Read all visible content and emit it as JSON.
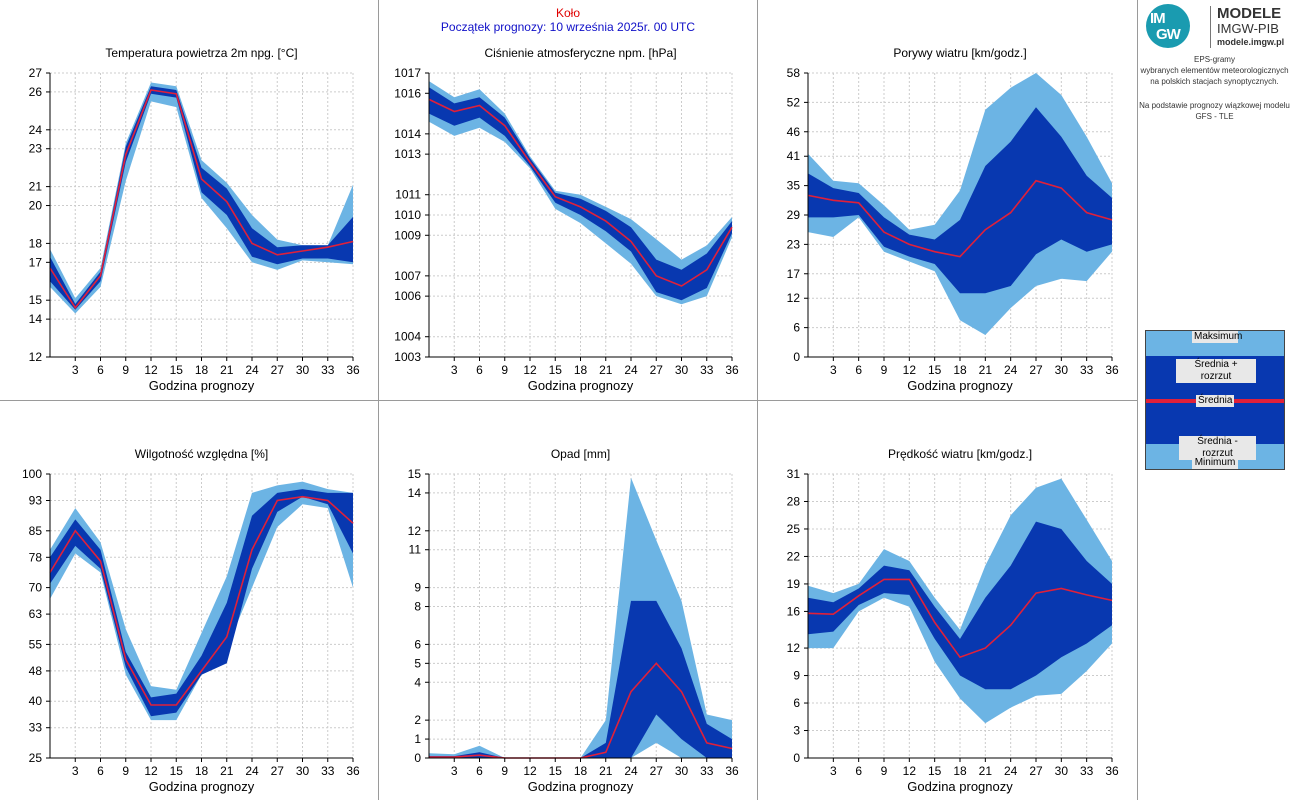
{
  "header": {
    "station": "Koło",
    "forecast_start": "Początek prognozy: 10 września 2025r. 00 UTC"
  },
  "sidebar": {
    "logo_big": "MODELE",
    "logo_org": "IMGW-PIB",
    "logo_url": "modele.imgw.pl",
    "logo_mark_top": "IM",
    "logo_mark_bottom": "GW",
    "desc_lines": [
      "EPS-gramy",
      "wybranych elementów meteorologicznych",
      "na polskich stacjach  synoptycznych."
    ],
    "source_lines": [
      "Na podstawie prognozy wiązkowej modelu",
      "GFS - TLE"
    ],
    "legend": {
      "max": "Maksimum",
      "mean_plus": "Średnia + rozrzut",
      "mean": "Średnia",
      "mean_minus": "Średnia - rozrzut",
      "min": "Minimum"
    }
  },
  "colors": {
    "envelope": "#6cb4e4",
    "spread": "#0838b0",
    "mean": "#e0203a",
    "grid": "#cccccc"
  },
  "chart_data": [
    {
      "type": "area",
      "title": "Temperatura powietrza 2m npg. [°C]",
      "xlabel": "Godzina prognozy",
      "x": [
        0,
        3,
        6,
        9,
        12,
        15,
        18,
        21,
        24,
        27,
        30,
        33,
        36
      ],
      "xticks": [
        3,
        6,
        9,
        12,
        15,
        18,
        21,
        24,
        27,
        30,
        33,
        36
      ],
      "ylim": [
        12,
        27
      ],
      "yticks": [
        12,
        14,
        15,
        17,
        18,
        20,
        21,
        23,
        24,
        26,
        27
      ],
      "min": [
        15.7,
        14.3,
        15.7,
        21.3,
        25.5,
        25.2,
        20.4,
        18.8,
        17.0,
        16.6,
        17.1,
        17.0,
        16.9
      ],
      "minus": [
        16.0,
        14.5,
        16.0,
        22.3,
        25.9,
        25.7,
        20.7,
        19.5,
        17.3,
        16.9,
        17.2,
        17.2,
        17.0
      ],
      "mean": [
        16.7,
        14.6,
        16.3,
        22.7,
        26.1,
        25.9,
        21.4,
        20.2,
        18.0,
        17.4,
        17.6,
        17.8,
        18.1
      ],
      "plus": [
        17.3,
        14.8,
        16.5,
        23.1,
        26.3,
        26.1,
        22.0,
        20.9,
        18.8,
        17.8,
        17.9,
        17.9,
        19.4
      ],
      "max": [
        17.7,
        15.1,
        16.7,
        23.3,
        26.5,
        26.3,
        22.4,
        21.2,
        19.5,
        18.2,
        17.9,
        17.9,
        21.1
      ]
    },
    {
      "type": "area",
      "title": "Ciśnienie atmosferyczne npm. [hPa]",
      "xlabel": "Godzina prognozy",
      "x": [
        0,
        3,
        6,
        9,
        12,
        15,
        18,
        21,
        24,
        27,
        30,
        33,
        36
      ],
      "xticks": [
        3,
        6,
        9,
        12,
        15,
        18,
        21,
        24,
        27,
        30,
        33,
        36
      ],
      "ylim": [
        1003,
        1017
      ],
      "yticks": [
        1003,
        1004,
        1006,
        1007,
        1009,
        1010,
        1011,
        1013,
        1014,
        1016,
        1017
      ],
      "min": [
        1014.6,
        1013.9,
        1014.3,
        1013.6,
        1012.3,
        1010.3,
        1009.6,
        1008.6,
        1007.6,
        1006.0,
        1005.6,
        1006.0,
        1008.9
      ],
      "minus": [
        1015.0,
        1014.4,
        1014.8,
        1013.9,
        1012.4,
        1010.6,
        1010.0,
        1009.2,
        1008.2,
        1006.2,
        1005.8,
        1006.4,
        1009.1
      ],
      "mean": [
        1015.7,
        1015.1,
        1015.4,
        1014.4,
        1012.6,
        1010.9,
        1010.4,
        1009.7,
        1008.7,
        1007.0,
        1006.5,
        1007.3,
        1009.4
      ],
      "plus": [
        1016.3,
        1015.5,
        1015.8,
        1014.8,
        1012.8,
        1011.1,
        1010.8,
        1010.2,
        1009.4,
        1007.8,
        1007.3,
        1008.1,
        1009.7
      ],
      "max": [
        1016.6,
        1015.8,
        1016.2,
        1015.0,
        1012.9,
        1011.2,
        1011.0,
        1010.4,
        1009.8,
        1008.8,
        1007.8,
        1008.5,
        1009.9
      ]
    },
    {
      "type": "area",
      "title": "Porywy wiatru [km/godz.]",
      "xlabel": "Godzina prognozy",
      "x": [
        0,
        3,
        6,
        9,
        12,
        15,
        18,
        21,
        24,
        27,
        30,
        33,
        36
      ],
      "xticks": [
        3,
        6,
        9,
        12,
        15,
        18,
        21,
        24,
        27,
        30,
        33,
        36
      ],
      "ylim": [
        0,
        58
      ],
      "yticks": [
        0,
        6,
        12,
        17,
        23,
        29,
        35,
        41,
        46,
        52,
        58
      ],
      "min": [
        25.5,
        24.5,
        28.5,
        21.5,
        19.5,
        17.5,
        7.5,
        4.5,
        10.0,
        14.5,
        16.0,
        15.5,
        21.5
      ],
      "minus": [
        28.5,
        28.5,
        29.0,
        22.5,
        20.5,
        19.0,
        13.0,
        13.0,
        14.5,
        21.0,
        24.0,
        21.5,
        23.0
      ],
      "mean": [
        33.0,
        32.0,
        31.5,
        25.5,
        23.0,
        21.5,
        20.5,
        26.0,
        29.5,
        36.0,
        34.5,
        29.5,
        28.0
      ],
      "plus": [
        37.5,
        34.5,
        33.5,
        28.5,
        25.0,
        24.0,
        28.0,
        39.0,
        44.0,
        51.0,
        45.0,
        37.0,
        32.5
      ],
      "max": [
        41.5,
        36.0,
        35.5,
        31.0,
        26.0,
        27.0,
        34.0,
        50.5,
        55.0,
        58.0,
        53.5,
        45.0,
        35.5
      ]
    },
    {
      "type": "area",
      "title": "Wilgotność względna [%]",
      "xlabel": "Godzina prognozy",
      "x": [
        0,
        3,
        6,
        9,
        12,
        15,
        18,
        21,
        24,
        27,
        30,
        33,
        36
      ],
      "xticks": [
        3,
        6,
        9,
        12,
        15,
        18,
        21,
        24,
        27,
        30,
        33,
        36
      ],
      "ylim": [
        25,
        100
      ],
      "yticks": [
        25,
        33,
        40,
        48,
        55,
        63,
        70,
        78,
        85,
        93,
        100
      ],
      "min": [
        67,
        79,
        74,
        47,
        35,
        35,
        47,
        54,
        70,
        86,
        92,
        91,
        70
      ],
      "minus": [
        71,
        81,
        75,
        49,
        36,
        37,
        47,
        50,
        75,
        90,
        94,
        92,
        79
      ],
      "mean": [
        74,
        85,
        77,
        51,
        39,
        39,
        48,
        57,
        80,
        93,
        94,
        93,
        87
      ],
      "plus": [
        78,
        88,
        80,
        53,
        41,
        42,
        52,
        66,
        89,
        95,
        96,
        95,
        95
      ],
      "max": [
        80,
        91,
        82,
        59,
        44,
        43,
        58,
        73,
        95,
        97,
        98,
        96,
        95
      ]
    },
    {
      "type": "area",
      "title": "Opad [mm]",
      "xlabel": "Godzina prognozy",
      "x": [
        0,
        3,
        6,
        9,
        12,
        15,
        18,
        21,
        24,
        27,
        30,
        33,
        36
      ],
      "xticks": [
        3,
        6,
        9,
        12,
        15,
        18,
        21,
        24,
        27,
        30,
        33,
        36
      ],
      "ylim": [
        0,
        15
      ],
      "yticks": [
        0,
        1,
        2,
        4,
        5,
        6,
        8,
        9,
        11,
        12,
        14,
        15
      ],
      "ytick_labels": [
        "0",
        "1",
        "2",
        "4",
        "5",
        "6",
        "8",
        "9",
        "11",
        "12",
        "14",
        "15"
      ],
      "min": [
        0,
        0,
        0,
        0,
        0,
        0,
        0,
        0,
        0,
        0.8,
        0,
        0,
        0
      ],
      "minus": [
        0,
        0,
        0,
        0,
        0,
        0,
        0,
        0,
        0,
        2.3,
        1.0,
        0,
        0
      ],
      "mean": [
        0.05,
        0.05,
        0.15,
        0,
        0,
        0,
        0,
        0.3,
        3.5,
        5.0,
        3.5,
        0.8,
        0.5
      ],
      "plus": [
        0.1,
        0.1,
        0.3,
        0,
        0,
        0,
        0,
        0.8,
        8.3,
        8.3,
        5.8,
        1.8,
        1.0
      ],
      "max": [
        0.25,
        0.2,
        0.65,
        0,
        0,
        0,
        0,
        2.0,
        14.8,
        11.5,
        8.3,
        2.3,
        2.0
      ]
    },
    {
      "type": "area",
      "title": "Prędkość wiatru [km/godz.]",
      "xlabel": "Godzina prognozy",
      "x": [
        0,
        3,
        6,
        9,
        12,
        15,
        18,
        21,
        24,
        27,
        30,
        33,
        36
      ],
      "xticks": [
        3,
        6,
        9,
        12,
        15,
        18,
        21,
        24,
        27,
        30,
        33,
        36
      ],
      "ylim": [
        0,
        31
      ],
      "yticks": [
        0,
        3,
        6,
        9,
        12,
        16,
        19,
        22,
        25,
        28,
        31
      ],
      "min": [
        12.0,
        12.0,
        16.0,
        17.5,
        16.5,
        10.5,
        6.5,
        3.8,
        5.5,
        6.8,
        7.0,
        9.5,
        12.5
      ],
      "minus": [
        13.5,
        13.8,
        16.7,
        18.0,
        17.8,
        13.0,
        9.0,
        7.5,
        7.5,
        9.0,
        11.0,
        12.5,
        14.5
      ],
      "mean": [
        15.8,
        15.7,
        17.7,
        19.5,
        19.5,
        14.8,
        11.0,
        12.0,
        14.5,
        18.0,
        18.5,
        17.8,
        17.2
      ],
      "plus": [
        17.5,
        17.0,
        18.5,
        21.0,
        20.5,
        16.5,
        13.0,
        17.5,
        21.0,
        25.8,
        25.0,
        21.5,
        19.0
      ],
      "max": [
        18.8,
        18.0,
        19.0,
        22.8,
        21.5,
        17.5,
        14.0,
        21.0,
        26.5,
        29.5,
        30.5,
        26.0,
        21.5
      ]
    }
  ]
}
